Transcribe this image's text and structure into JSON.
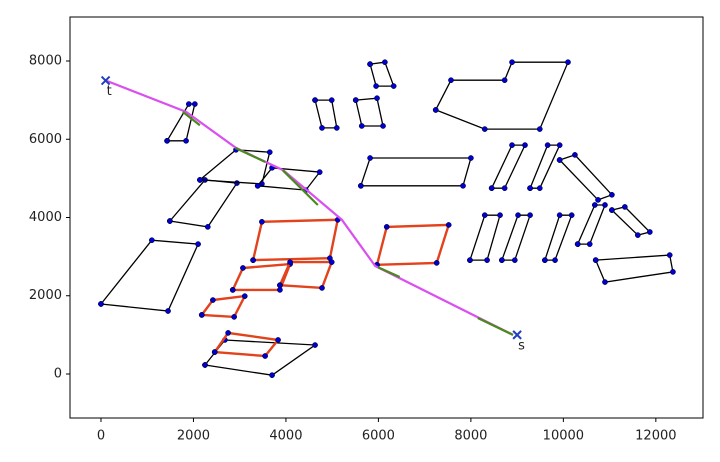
{
  "chart_data": {
    "type": "line",
    "xlim": [
      -670,
      13020
    ],
    "ylim": [
      -1125,
      9125
    ],
    "xticks": [
      0,
      2000,
      4000,
      6000,
      8000,
      10000,
      12000
    ],
    "yticks": [
      0,
      2000,
      4000,
      6000,
      8000
    ],
    "series": [
      {
        "color": "#000000",
        "marker_color": "#0000cc",
        "x": [
          0,
          1100,
          2100,
          1450,
          0
        ],
        "values": [
          1790,
          3420,
          3320,
          1610,
          1790
        ]
      },
      {
        "color": "#000000",
        "marker_color": "#0000cc",
        "x": [
          1490,
          2250,
          2940,
          2310,
          1490
        ],
        "values": [
          3910,
          4960,
          4880,
          3760,
          3910
        ]
      },
      {
        "color": "#000000",
        "marker_color": "#0000cc",
        "x": [
          2140,
          2920,
          3650,
          3480,
          2140
        ],
        "values": [
          4960,
          5730,
          5670,
          4860,
          4960
        ]
      },
      {
        "color": "#000000",
        "marker_color": "#0000cc",
        "x": [
          3390,
          3700,
          4730,
          4430,
          3390
        ],
        "values": [
          4810,
          5270,
          5160,
          4700,
          4810
        ]
      },
      {
        "color": "#000000",
        "marker_color": "#0000cc",
        "x": [
          1430,
          1900,
          2030,
          1840,
          1430
        ],
        "values": [
          5960,
          6900,
          6900,
          5960,
          5960
        ]
      },
      {
        "color": "#000000",
        "marker_color": "#0000cc",
        "x": [
          4630,
          4990,
          5100,
          4780,
          4630
        ],
        "values": [
          7000,
          7000,
          6290,
          6290,
          7000
        ]
      },
      {
        "color": "#000000",
        "marker_color": "#0000cc",
        "x": [
          5510,
          5970,
          6100,
          5640,
          5510
        ],
        "values": [
          7000,
          7050,
          6340,
          6340,
          7000
        ]
      },
      {
        "color": "#000000",
        "marker_color": "#0000cc",
        "x": [
          5820,
          6140,
          6330,
          5950,
          5820
        ],
        "values": [
          7920,
          7970,
          7360,
          7360,
          7920
        ]
      },
      {
        "color": "#000000",
        "marker_color": "#0000cc",
        "x": [
          7240,
          7570,
          8730,
          8890,
          10100,
          9490,
          8300,
          7240
        ],
        "values": [
          6750,
          7510,
          7510,
          7970,
          7970,
          6260,
          6260,
          6750
        ]
      },
      {
        "color": "#000000",
        "marker_color": "#0000cc",
        "x": [
          5620,
          5820,
          8000,
          7830,
          5620
        ],
        "values": [
          4810,
          5520,
          5520,
          4810,
          4810
        ]
      },
      {
        "color": "#000000",
        "marker_color": "#0000cc",
        "x": [
          8450,
          8890,
          9170,
          8730,
          8450
        ],
        "values": [
          4750,
          5850,
          5850,
          4750,
          4750
        ]
      },
      {
        "color": "#000000",
        "marker_color": "#0000cc",
        "x": [
          7980,
          8300,
          8630,
          8350,
          7980
        ],
        "values": [
          2910,
          4060,
          4060,
          2910,
          2910
        ]
      },
      {
        "color": "#000000",
        "marker_color": "#0000cc",
        "x": [
          8670,
          9020,
          9280,
          8950,
          8670
        ],
        "values": [
          2910,
          4060,
          4060,
          2910,
          2910
        ]
      },
      {
        "color": "#000000",
        "marker_color": "#0000cc",
        "x": [
          9280,
          9660,
          9920,
          9490,
          9280
        ],
        "values": [
          4750,
          5850,
          5850,
          4750,
          4750
        ]
      },
      {
        "color": "#000000",
        "marker_color": "#0000cc",
        "x": [
          9600,
          9920,
          10180,
          9820,
          9600
        ],
        "values": [
          2910,
          4060,
          4060,
          2910,
          2910
        ]
      },
      {
        "color": "#000000",
        "marker_color": "#0000cc",
        "x": [
          10310,
          10680,
          10900,
          10570,
          10310
        ],
        "values": [
          3320,
          4320,
          4320,
          3320,
          3320
        ]
      },
      {
        "color": "#000000",
        "marker_color": "#0000cc",
        "x": [
          9920,
          10250,
          11050,
          10750,
          9920
        ],
        "values": [
          5470,
          5600,
          4580,
          4450,
          5470
        ]
      },
      {
        "color": "#000000",
        "marker_color": "#0000cc",
        "x": [
          11050,
          11330,
          11870,
          11610,
          11050
        ],
        "values": [
          4190,
          4270,
          3630,
          3550,
          4190
        ]
      },
      {
        "color": "#000000",
        "marker_color": "#0000cc",
        "x": [
          10700,
          12300,
          12370,
          10900,
          10700
        ],
        "values": [
          2910,
          3040,
          2610,
          2350,
          2910
        ]
      },
      {
        "color": "#000000",
        "marker_color": "#0000cc",
        "x": [
          2250,
          2680,
          4630,
          3700,
          2250
        ],
        "values": [
          230,
          870,
          740,
          -30,
          230
        ]
      },
      {
        "color": "#e2421c",
        "marker_color": "#0000cc",
        "x": [
          3290,
          3480,
          5120,
          4950,
          3290
        ],
        "values": [
          2910,
          3890,
          3940,
          2960,
          2910
        ]
      },
      {
        "color": "#e2421c",
        "marker_color": "#0000cc",
        "x": [
          2850,
          3070,
          4090,
          3870,
          2850
        ],
        "values": [
          2150,
          2710,
          2810,
          2150,
          2150
        ]
      },
      {
        "color": "#e2421c",
        "marker_color": "#0000cc",
        "x": [
          2180,
          2420,
          3110,
          2880,
          2180
        ],
        "values": [
          1510,
          1890,
          1990,
          1460,
          1510
        ]
      },
      {
        "color": "#e2421c",
        "marker_color": "#0000cc",
        "x": [
          2460,
          2750,
          3830,
          3550,
          2460
        ],
        "values": [
          560,
          1050,
          870,
          460,
          560
        ]
      },
      {
        "color": "#e2421c",
        "marker_color": "#0000cc",
        "x": [
          5970,
          6180,
          7520,
          7260,
          5970
        ],
        "values": [
          2790,
          3760,
          3810,
          2840,
          2790
        ]
      },
      {
        "color": "#e2421c",
        "marker_color": "#0000cc",
        "x": [
          3870,
          4090,
          4990,
          4780,
          3870
        ],
        "values": [
          2270,
          2860,
          2860,
          2200,
          2270
        ]
      },
      {
        "color": "#d94ff0",
        "x": [
          130,
          1840,
          2920,
          3940,
          5210,
          5930,
          8910
        ],
        "values": [
          7490,
          6700,
          5780,
          5210,
          3940,
          2760,
          1000
        ]
      },
      {
        "color": "#4a8a1c",
        "x": [
          1770,
          2140,
          null,
          2900,
          3550,
          null,
          3930,
          4690,
          null,
          5990,
          6460,
          null,
          8150,
          8910
        ],
        "values": [
          6700,
          6360,
          null,
          5780,
          5420,
          null,
          5210,
          4320,
          null,
          2730,
          2480,
          null,
          1430,
          1000
        ]
      }
    ],
    "annotations": [
      {
        "text": "t",
        "x": 100,
        "y": 7500
      },
      {
        "text": "s",
        "x": 9000,
        "y": 1000
      }
    ]
  }
}
